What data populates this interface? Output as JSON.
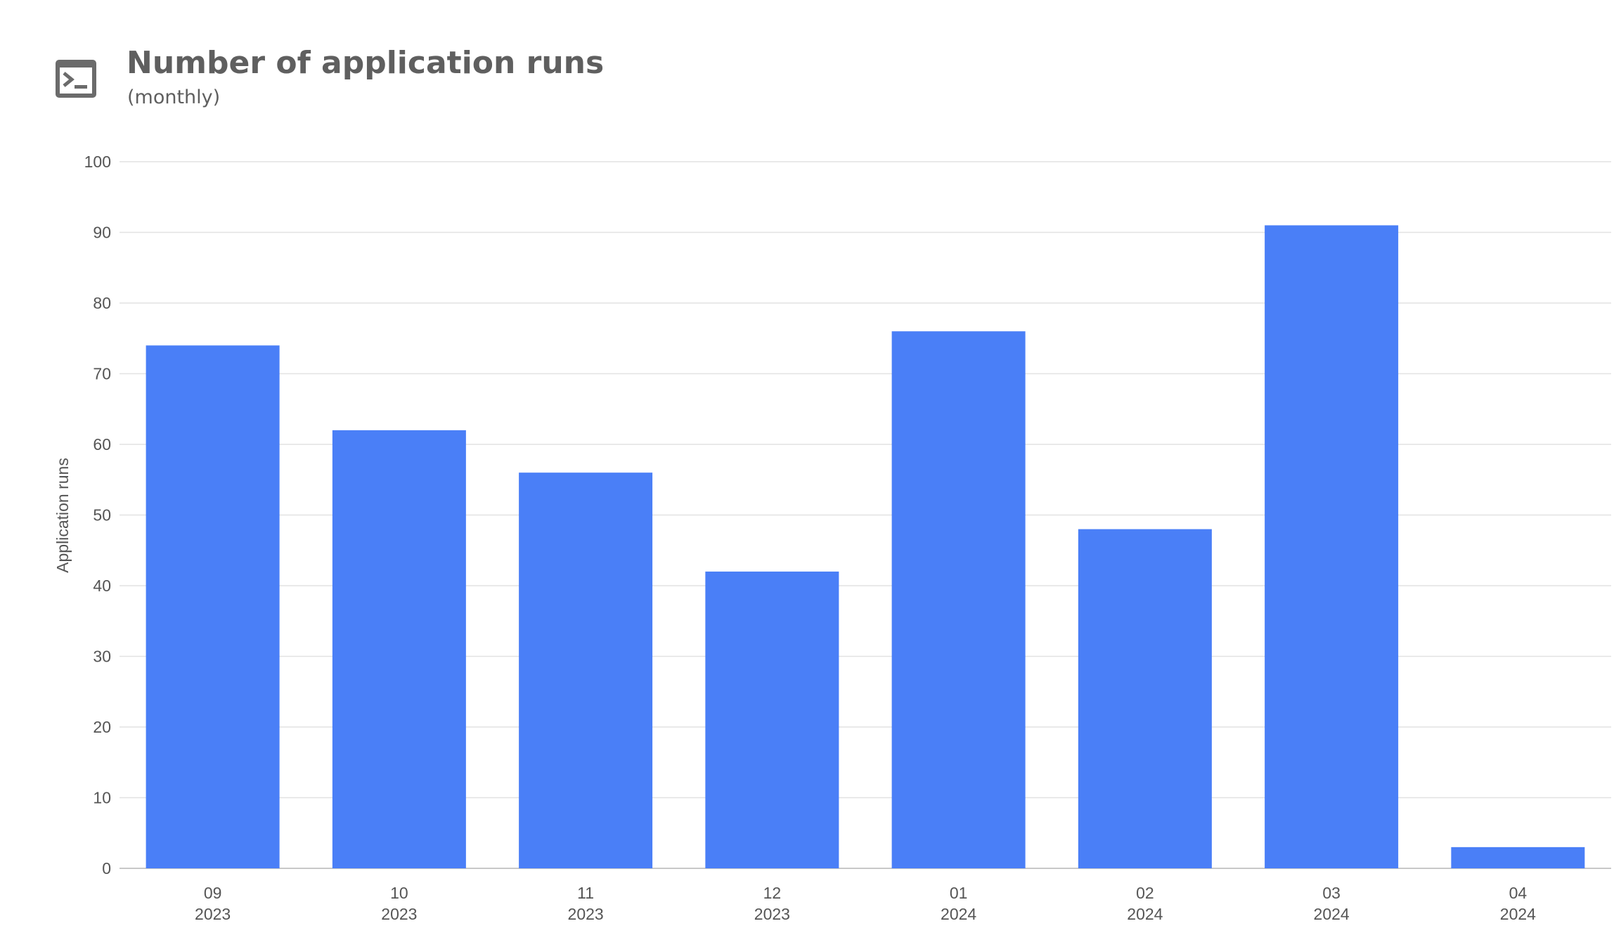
{
  "header": {
    "title": "Number of application runs",
    "subtitle": "(monthly)",
    "icon": "terminal-icon"
  },
  "chart_data": {
    "type": "bar",
    "categories": [
      [
        "09",
        "2023"
      ],
      [
        "10",
        "2023"
      ],
      [
        "11",
        "2023"
      ],
      [
        "12",
        "2023"
      ],
      [
        "01",
        "2024"
      ],
      [
        "02",
        "2024"
      ],
      [
        "03",
        "2024"
      ],
      [
        "04",
        "2024"
      ]
    ],
    "values": [
      74,
      62,
      56,
      42,
      76,
      48,
      91,
      3
    ],
    "ylabel": "Application runs",
    "xlabel": "",
    "ylim": [
      0,
      100
    ],
    "yticks": [
      0,
      10,
      20,
      30,
      40,
      50,
      60,
      70,
      80,
      90,
      100
    ],
    "grid": true,
    "legend": "none",
    "colors": {
      "bar": "#4a7ff7",
      "grid": "#e2e2e2",
      "axis": "#c8c8c8",
      "text": "#555555"
    }
  }
}
